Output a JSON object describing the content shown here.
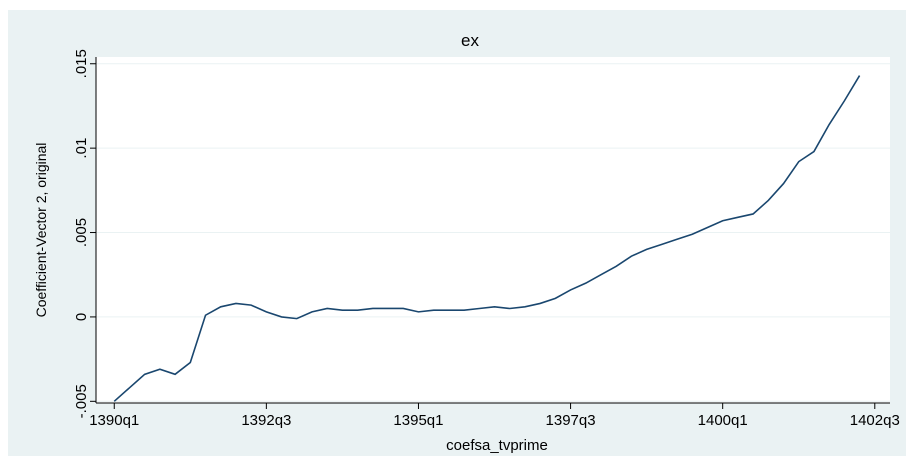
{
  "chart_data": {
    "type": "line",
    "title": "ex",
    "xlabel": "coefsa_tvprime",
    "ylabel": "Coefficient-Vector 2, original",
    "x": [
      0,
      1,
      2,
      3,
      4,
      5,
      6,
      7,
      8,
      9,
      10,
      11,
      12,
      13,
      14,
      15,
      16,
      17,
      18,
      19,
      20,
      21,
      22,
      23,
      24,
      25,
      26,
      27,
      28,
      29,
      30,
      31,
      32,
      33,
      34,
      35,
      36,
      37,
      38,
      39,
      40,
      41,
      42,
      43,
      44,
      45,
      46,
      47,
      48,
      49
    ],
    "series": [
      {
        "name": "ex",
        "color": "#1a476f",
        "values": [
          -0.005,
          -0.0042,
          -0.0034,
          -0.0031,
          -0.0034,
          -0.0027,
          0.0001,
          0.0006,
          0.0008,
          0.0007,
          0.0003,
          0,
          -0.0001,
          0.0003,
          0.0005,
          0.0004,
          0.0004,
          0.0005,
          0.0005,
          0.0005,
          0.0003,
          0.0004,
          0.0004,
          0.0004,
          0.0005,
          0.0006,
          0.0005,
          0.0006,
          0.0008,
          0.0011,
          0.0016,
          0.002,
          0.0025,
          0.003,
          0.0036,
          0.004,
          0.0043,
          0.0046,
          0.0049,
          0.0053,
          0.0057,
          0.0059,
          0.0061,
          0.0069,
          0.0079,
          0.0092,
          0.0098,
          0.0114,
          0.0128,
          0.0143
        ]
      }
    ],
    "xlim": [
      -1.2,
      51
    ],
    "xticks": [
      {
        "value": 0,
        "label": "1390q1"
      },
      {
        "value": 10,
        "label": "1392q3"
      },
      {
        "value": 20,
        "label": "1395q1"
      },
      {
        "value": 30,
        "label": "1397q3"
      },
      {
        "value": 40,
        "label": "1400q1"
      },
      {
        "value": 50,
        "label": "1402q3"
      }
    ],
    "ylim": [
      -0.0051,
      0.0154
    ],
    "yticks": [
      {
        "value": -0.005,
        "label": "-.005"
      },
      0,
      {
        "value": 0.005,
        "label": ".005"
      },
      {
        "value": 0.01,
        "label": ".01"
      },
      {
        "value": 0.015,
        "label": ".015"
      }
    ],
    "grid": true
  }
}
